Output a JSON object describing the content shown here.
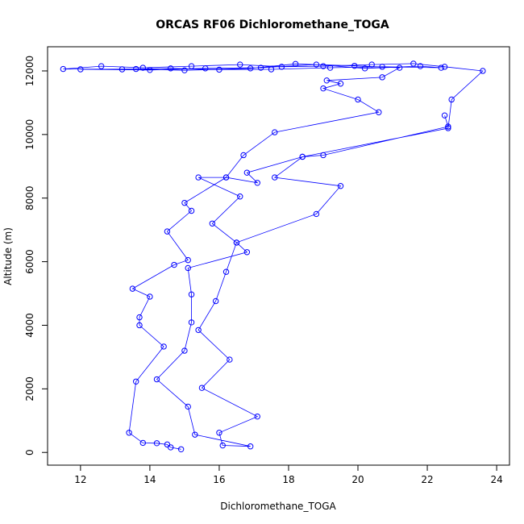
{
  "chart_data": {
    "type": "line",
    "title": "ORCAS RF06 Dichloromethane_TOGA",
    "x_label": "Dichloromethane_TOGA",
    "y_label": "Altitude (m)",
    "xlim": [
      11.05,
      24.37
    ],
    "ylim": [
      -400,
      12760
    ],
    "xticks": [
      12,
      14,
      16,
      18,
      20,
      22,
      24
    ],
    "yticks": [
      0,
      2000,
      4000,
      6000,
      8000,
      10000,
      12000
    ],
    "series": [
      {
        "color": "#0000ff",
        "x": [
          14.9,
          14.6,
          14.5,
          14.2,
          13.8,
          13.4,
          13.6,
          14.4,
          13.7,
          13.7,
          14.0,
          13.5,
          14.7,
          15.1,
          14.5,
          15.2,
          15.0,
          16.2,
          17.1,
          16.8,
          18.4,
          22.6,
          22.7,
          23.6,
          22.5,
          21.6,
          20.4,
          19.0,
          17.8,
          16.6,
          15.2,
          13.8,
          12.6,
          11.5,
          13.2,
          14.6,
          16.0,
          17.5,
          19.2,
          20.7,
          22.4,
          21.8,
          20.2,
          18.8,
          17.2,
          15.6,
          14.0,
          12.0,
          13.6,
          15.0,
          16.9,
          18.2,
          19.9,
          21.2,
          20.7,
          19.1,
          19.5,
          19.0,
          20.0,
          20.6,
          17.6,
          16.7,
          16.2,
          15.4,
          16.6,
          15.8,
          16.5,
          16.8,
          15.1,
          15.2,
          15.2,
          15.0,
          14.2,
          15.1,
          15.3,
          16.9,
          16.1,
          16.0,
          17.1,
          15.5,
          16.3,
          15.4,
          15.9,
          16.2,
          16.5,
          18.8,
          19.5,
          17.6,
          18.4,
          19.0,
          22.6,
          22.5
        ],
        "values": [
          100,
          160,
          250,
          290,
          300,
          620,
          2230,
          3330,
          4000,
          4250,
          4900,
          5150,
          5900,
          6050,
          6950,
          7600,
          7850,
          8650,
          8480,
          8800,
          9300,
          10200,
          11100,
          12000,
          12130,
          12230,
          12200,
          12150,
          12130,
          12200,
          12150,
          12100,
          12150,
          12060,
          12050,
          12080,
          12040,
          12050,
          12100,
          12130,
          12100,
          12150,
          12080,
          12200,
          12100,
          12080,
          12030,
          12050,
          12060,
          12020,
          12080,
          12220,
          12160,
          12100,
          11800,
          11700,
          11600,
          11450,
          11100,
          10700,
          10070,
          9350,
          8650,
          8650,
          8050,
          7200,
          6600,
          6300,
          5800,
          4970,
          4090,
          3200,
          2300,
          1440,
          560,
          190,
          220,
          620,
          1130,
          2030,
          2920,
          3850,
          4760,
          5680,
          6600,
          7500,
          8380,
          8650,
          9300,
          9350,
          10250,
          10600
        ]
      }
    ]
  }
}
